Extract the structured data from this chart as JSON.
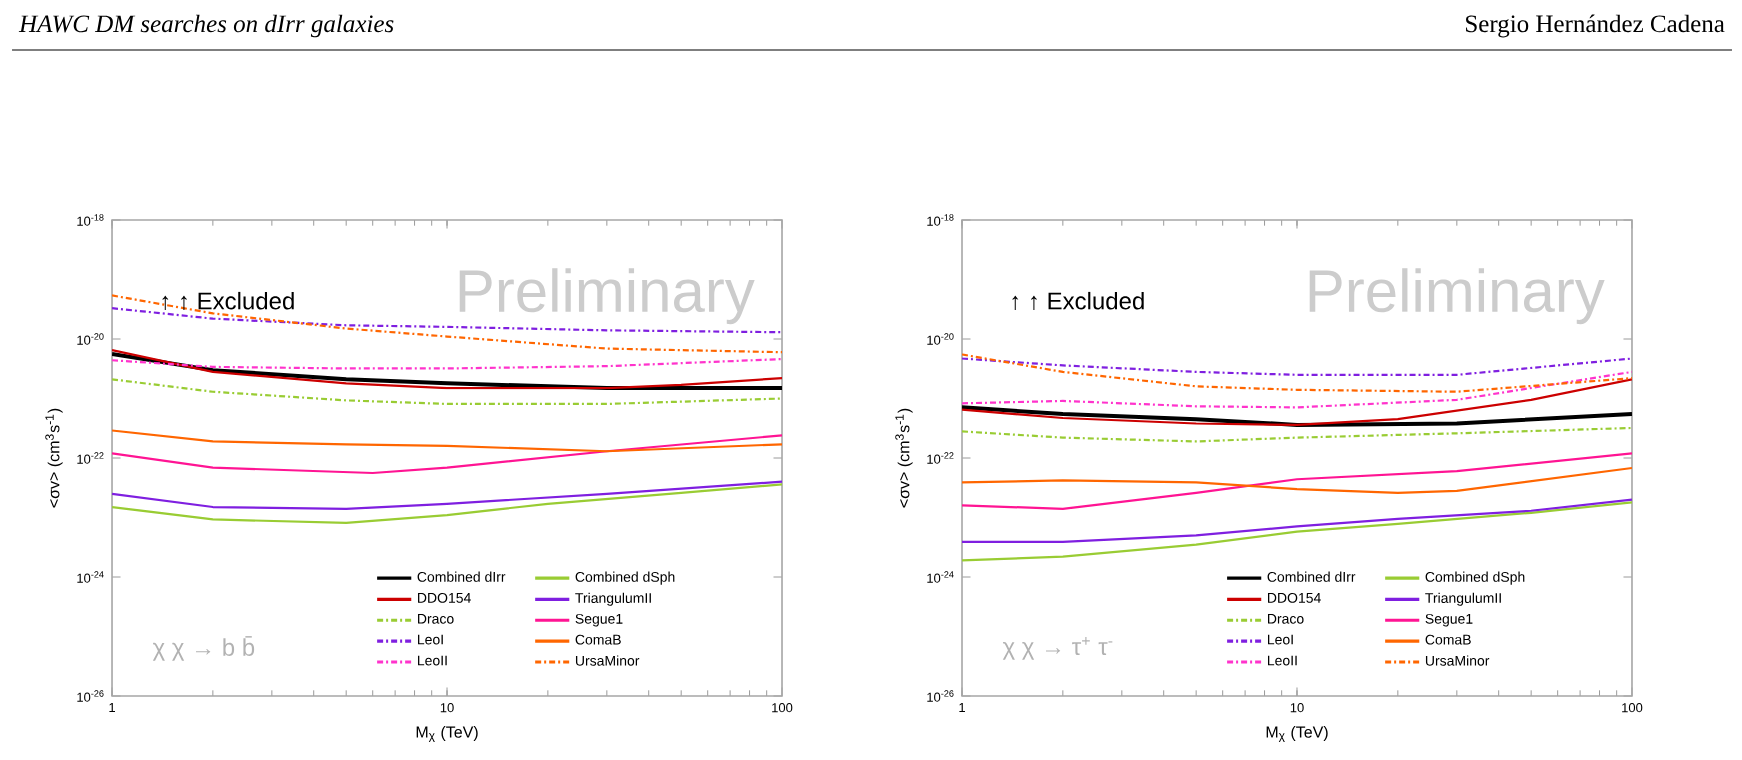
{
  "chart_data": [
    {
      "type": "line",
      "xlabel": "M$_{χ}$ (TeV)",
      "ylabel": "<σv> (cm$^{3}$s$^{-1}$)",
      "log": "xy",
      "legend": "bottom",
      "xlim": [
        1,
        100
      ],
      "ylim": [
        1e-26,
        1e-18
      ],
      "xticks": [
        1,
        10,
        100
      ],
      "yticks": [
        {
          "value": 1e-26,
          "label": "10$^{-26}$"
        },
        {
          "value": 1e-24,
          "label": "10$^{-24}$"
        },
        {
          "value": 1e-22,
          "label": "10$^{-22}$"
        },
        {
          "value": 1e-20,
          "label": "10$^{-20}$"
        },
        {
          "value": 1e-18,
          "label": "10$^{-18}$"
        }
      ],
      "annotations": [
        "HAWC DM searches on dIrr galaxies",
        "↑ ↑ Excluded",
        "Preliminary",
        "χ χ → b b̄"
      ],
      "series": [
        {
          "name": "Combined dIrr",
          "color": "#000000",
          "line_style": "solid",
          "x": [
            1,
            2,
            5,
            10,
            30,
            100
          ],
          "values": [
            5.6e-21,
            3e-21,
            2.1e-21,
            1.8e-21,
            1.5e-21,
            1.5e-21
          ]
        },
        {
          "name": "DDO154",
          "color": "#cc0000",
          "line_style": "solid",
          "x": [
            1,
            2,
            5,
            10,
            30,
            50,
            100
          ],
          "values": [
            6.5e-21,
            2.8e-21,
            1.8e-21,
            1.5e-21,
            1.5e-21,
            1.7e-21,
            2.2e-21
          ]
        },
        {
          "name": "Draco",
          "color": "#99cc33",
          "line_style": "dashdotted",
          "x": [
            1,
            2,
            5,
            10,
            30,
            100
          ],
          "values": [
            2.1e-21,
            1.3e-21,
            9.3e-22,
            8.1e-22,
            8.1e-22,
            1e-21
          ]
        },
        {
          "name": "LeoI",
          "color": "#7f1fe0",
          "line_style": "dashdotted",
          "x": [
            1,
            2,
            5,
            10,
            30,
            100
          ],
          "values": [
            3.3e-20,
            2.2e-20,
            1.7e-20,
            1.6e-20,
            1.4e-20,
            1.3e-20
          ]
        },
        {
          "name": "LeoII",
          "color": "#ff33cc",
          "line_style": "dashdotted",
          "x": [
            1,
            2,
            5,
            10,
            30,
            100
          ],
          "values": [
            4.4e-21,
            3.4e-21,
            3.2e-21,
            3.2e-21,
            3.5e-21,
            4.6e-21
          ]
        },
        {
          "name": "Combined dSph",
          "color": "#99cc33",
          "line_style": "solid",
          "x": [
            1,
            2,
            5,
            10,
            20,
            50,
            100
          ],
          "values": [
            1.5e-23,
            9.3e-24,
            8.1e-24,
            1.1e-23,
            1.7e-23,
            2.6e-23,
            3.6e-23
          ]
        },
        {
          "name": "TriangulumII",
          "color": "#7f1fe0",
          "line_style": "solid",
          "x": [
            1,
            2,
            5,
            10,
            30,
            100
          ],
          "values": [
            2.5e-23,
            1.5e-23,
            1.4e-23,
            1.7e-23,
            2.5e-23,
            4e-23
          ]
        },
        {
          "name": "Segue1",
          "color": "#ff1493",
          "line_style": "solid",
          "x": [
            1,
            2,
            6,
            10,
            30,
            100
          ],
          "values": [
            1.2e-22,
            6.9e-23,
            5.6e-23,
            6.9e-23,
            1.3e-22,
            2.4e-22
          ]
        },
        {
          "name": "ComaB",
          "color": "#ff6600",
          "line_style": "solid",
          "x": [
            1,
            2,
            5,
            10,
            30,
            100
          ],
          "values": [
            2.9e-22,
            1.9e-22,
            1.7e-22,
            1.6e-22,
            1.3e-22,
            1.7e-22
          ]
        },
        {
          "name": "UrsaMinor",
          "color": "#ff6600",
          "line_style": "dashdotted",
          "x": [
            1,
            2,
            5,
            10,
            30,
            100
          ],
          "values": [
            5.4e-20,
            2.7e-20,
            1.5e-20,
            1.1e-20,
            6.9e-21,
            6e-21
          ]
        }
      ]
    },
    {
      "type": "line",
      "xlabel": "M$_{χ}$ (TeV)",
      "ylabel": "<σv> (cm$^{3}$s$^{-1}$)",
      "log": "xy",
      "legend": "bottom",
      "xlim": [
        1,
        100
      ],
      "ylim": [
        1e-26,
        1e-18
      ],
      "xticks": [
        1,
        10,
        100
      ],
      "yticks": [
        {
          "value": 1e-26,
          "label": "10$^{-26}$"
        },
        {
          "value": 1e-24,
          "label": "10$^{-24}$"
        },
        {
          "value": 1e-22,
          "label": "10$^{-22}$"
        },
        {
          "value": 1e-20,
          "label": "10$^{-20}$"
        },
        {
          "value": 1e-18,
          "label": "10$^{-18}$"
        }
      ],
      "annotations": [
        "Sergio Hernández Cadena",
        "↑ ↑ Excluded",
        "Preliminary",
        "χ χ → τ$^{+}$ τ$^{-}$"
      ],
      "series": [
        {
          "name": "Combined dIrr",
          "color": "#000000",
          "line_style": "solid",
          "x": [
            1,
            2,
            5,
            10,
            30,
            100
          ],
          "values": [
            7.1e-22,
            5.5e-22,
            4.5e-22,
            3.6e-22,
            3.8e-22,
            5.5e-22
          ]
        },
        {
          "name": "DDO154",
          "color": "#cc0000",
          "line_style": "solid",
          "x": [
            1,
            2,
            5,
            10,
            20,
            50,
            100
          ],
          "values": [
            6.5e-22,
            4.7e-22,
            3.8e-22,
            3.6e-22,
            4.5e-22,
            9.5e-22,
            2.1e-21
          ]
        },
        {
          "name": "Draco",
          "color": "#99cc33",
          "line_style": "dashdotted",
          "x": [
            1,
            2,
            5,
            10,
            30,
            100
          ],
          "values": [
            2.8e-22,
            2.2e-22,
            1.9e-22,
            2.2e-22,
            2.6e-22,
            3.2e-22
          ]
        },
        {
          "name": "LeoI",
          "color": "#7f1fe0",
          "line_style": "dashdotted",
          "x": [
            1,
            2,
            5,
            10,
            30,
            100
          ],
          "values": [
            4.7e-21,
            3.6e-21,
            2.8e-21,
            2.5e-21,
            2.5e-21,
            4.7e-21
          ]
        },
        {
          "name": "LeoII",
          "color": "#ff33cc",
          "line_style": "dashdotted",
          "x": [
            1,
            2,
            5,
            10,
            30,
            100
          ],
          "values": [
            8.3e-22,
            9.1e-22,
            7.4e-22,
            7.1e-22,
            9.5e-22,
            2.8e-21
          ]
        },
        {
          "name": "Combined dSph",
          "color": "#99cc33",
          "line_style": "solid",
          "x": [
            1,
            2,
            5,
            10,
            20,
            50,
            100
          ],
          "values": [
            1.9e-24,
            2.2e-24,
            3.5e-24,
            5.8e-24,
            7.8e-24,
            1.2e-23,
            1.8e-23
          ]
        },
        {
          "name": "TriangulumII",
          "color": "#7f1fe0",
          "line_style": "solid",
          "x": [
            1,
            2,
            5,
            10,
            20,
            50,
            100
          ],
          "values": [
            3.9e-24,
            3.9e-24,
            5e-24,
            7.1e-24,
            9.5e-24,
            1.3e-23,
            2e-23
          ]
        },
        {
          "name": "Segue1",
          "color": "#ff1493",
          "line_style": "solid",
          "x": [
            1,
            2,
            5,
            10,
            30,
            100
          ],
          "values": [
            1.6e-23,
            1.4e-23,
            2.6e-23,
            4.4e-23,
            6e-23,
            1.2e-22
          ]
        },
        {
          "name": "ComaB",
          "color": "#ff6600",
          "line_style": "solid",
          "x": [
            1,
            2,
            5,
            10,
            20,
            30,
            100
          ],
          "values": [
            3.9e-23,
            4.2e-23,
            3.9e-23,
            3e-23,
            2.6e-23,
            2.8e-23,
            6.8e-23
          ]
        },
        {
          "name": "UrsaMinor",
          "color": "#ff6600",
          "line_style": "dashdotted",
          "x": [
            1,
            2,
            5,
            10,
            30,
            100
          ],
          "values": [
            5.5e-21,
            2.8e-21,
            1.6e-21,
            1.4e-21,
            1.3e-21,
            2.2e-21
          ]
        }
      ]
    }
  ]
}
